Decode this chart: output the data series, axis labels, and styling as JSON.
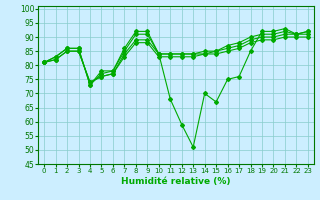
{
  "xlabel": "Humidité relative (%)",
  "background_color": "#cceeff",
  "grid_color": "#88cccc",
  "line_color": "#00aa00",
  "xlim": [
    -0.5,
    23.5
  ],
  "ylim": [
    45,
    101
  ],
  "yticks": [
    45,
    50,
    55,
    60,
    65,
    70,
    75,
    80,
    85,
    90,
    95,
    100
  ],
  "xticks": [
    0,
    1,
    2,
    3,
    4,
    5,
    6,
    7,
    8,
    9,
    10,
    11,
    12,
    13,
    14,
    15,
    16,
    17,
    18,
    19,
    20,
    21,
    22,
    23
  ],
  "series1_x": [
    0,
    1,
    2,
    3,
    4,
    5,
    6,
    7,
    8,
    9,
    10,
    11,
    12,
    13,
    14,
    15,
    16,
    17,
    18,
    19,
    20,
    21,
    22,
    23
  ],
  "series1_y": [
    81,
    83,
    86,
    86,
    73,
    78,
    78,
    86,
    92,
    92,
    84,
    68,
    59,
    51,
    70,
    67,
    75,
    76,
    85,
    92,
    92,
    93,
    91,
    92
  ],
  "series2_x": [
    0,
    1,
    2,
    3,
    4,
    5,
    6,
    7,
    8,
    9,
    10,
    11,
    12,
    13,
    14,
    15,
    16,
    17,
    18,
    19,
    20,
    21,
    22,
    23
  ],
  "series2_y": [
    81,
    83,
    86,
    86,
    73,
    77,
    78,
    85,
    91,
    91,
    84,
    84,
    84,
    84,
    85,
    85,
    87,
    88,
    90,
    91,
    91,
    92,
    91,
    92
  ],
  "series3_x": [
    0,
    1,
    2,
    3,
    4,
    5,
    6,
    7,
    8,
    9,
    10,
    11,
    12,
    13,
    14,
    15,
    16,
    17,
    18,
    19,
    20,
    21,
    22,
    23
  ],
  "series3_y": [
    81,
    82,
    85,
    85,
    74,
    76,
    77,
    84,
    89,
    89,
    84,
    84,
    84,
    84,
    84,
    85,
    86,
    87,
    89,
    90,
    90,
    91,
    91,
    91
  ],
  "series4_x": [
    0,
    1,
    2,
    3,
    4,
    5,
    6,
    7,
    8,
    9,
    10,
    11,
    12,
    13,
    14,
    15,
    16,
    17,
    18,
    19,
    20,
    21,
    22,
    23
  ],
  "series4_y": [
    81,
    82,
    85,
    85,
    74,
    76,
    77,
    83,
    88,
    88,
    83,
    83,
    83,
    83,
    84,
    84,
    85,
    86,
    88,
    89,
    89,
    90,
    90,
    90
  ]
}
